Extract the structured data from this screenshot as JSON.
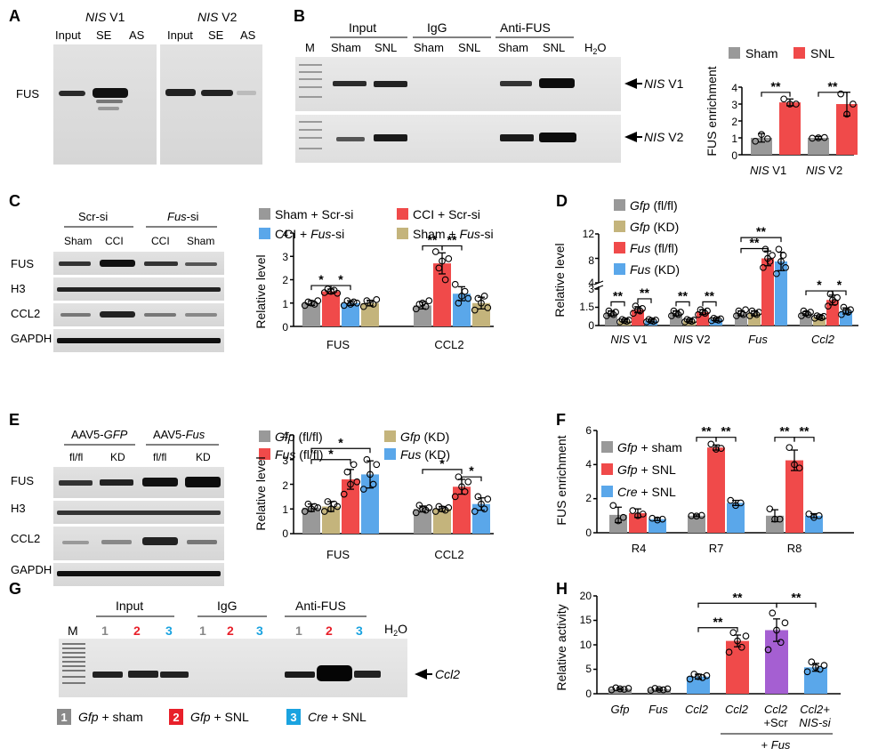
{
  "colors": {
    "gray": "#999999",
    "red": "#f04a4a",
    "blue": "#5aa7ea",
    "tan": "#c4b47c",
    "purple": "#a55fd2",
    "band_dark": "#111111"
  },
  "panel_labels": {
    "A": "A",
    "B": "B",
    "C": "C",
    "D": "D",
    "E": "E",
    "F": "F",
    "G": "G",
    "H": "H"
  },
  "panelA": {
    "group1_italic": "NIS",
    "group1_rest": " V1",
    "group2_italic": "NIS",
    "group2_rest": " V2",
    "lanes1": [
      "Input",
      "SE",
      "AS"
    ],
    "lanes2": [
      "Input",
      "SE",
      "AS"
    ],
    "row_label": "FUS"
  },
  "panelB": {
    "marker": "M",
    "groups": [
      "Input",
      "IgG",
      "Anti-FUS"
    ],
    "lanes": [
      "Sham",
      "SNL",
      "Sham",
      "SNL",
      "Sham",
      "SNL"
    ],
    "h2o_main": "H",
    "h2o_sub": "2",
    "h2o_end": "O",
    "arrow1_italic": "NIS",
    "arrow1_rest": " V1",
    "arrow2_italic": "NIS",
    "arrow2_rest": " V2",
    "chart": {
      "legend": [
        "Sham",
        "SNL"
      ],
      "ylabel": "FUS enrichment",
      "yticks": [
        "0",
        "1",
        "2",
        "3",
        "4"
      ],
      "categories_italic": [
        "NIS",
        "NIS"
      ],
      "categories_rest": [
        " V1",
        " V2"
      ],
      "sig": [
        "**",
        "**"
      ]
    }
  },
  "panelC": {
    "groups": [
      "Scr-si",
      "Fus-si"
    ],
    "lanes": [
      "Sham",
      "CCI",
      "CCI",
      "Sham"
    ],
    "rows": [
      "FUS",
      "H3",
      "CCL2",
      "GAPDH"
    ],
    "chart": {
      "legend": [
        "Sham + Scr-si",
        "CCI + Scr-si",
        "CCI + ",
        "Fus",
        "-si",
        "Sham + ",
        "Fus",
        "-si"
      ],
      "ylabel": "Relative level",
      "yticks": [
        "0",
        "1",
        "2",
        "3",
        "4"
      ],
      "categories": [
        "FUS",
        "CCL2"
      ],
      "sig": [
        "*",
        "*",
        "**",
        "**"
      ]
    }
  },
  "panelD": {
    "legend": [
      "Gfp",
      " (fl/fl)",
      "Gfp",
      " (KD)",
      "Fus",
      " (fl/fl)",
      "Fus",
      " (KD)"
    ],
    "ylabel": "Relative level",
    "yticks_low": [
      "0",
      "1.5",
      "3"
    ],
    "yticks_high": [
      "4",
      "8",
      "12"
    ],
    "categories_italic": [
      "NIS",
      "NIS",
      "Fus",
      "Ccl2"
    ],
    "categories_rest": [
      " V1",
      " V2",
      "",
      ""
    ],
    "sig": [
      "**",
      "**",
      "**",
      "**",
      "**",
      "**",
      "*",
      "*"
    ]
  },
  "panelE": {
    "groups_main": [
      "AAV5-",
      "AAV5-"
    ],
    "groups_italic": [
      "GFP",
      "Fus"
    ],
    "lanes": [
      "fl/fl",
      "KD",
      "fl/fl",
      "KD"
    ],
    "rows": [
      "FUS",
      "H3",
      "CCL2",
      "GAPDH"
    ],
    "chart": {
      "legend": [
        "Gfp",
        " (fl/fl)",
        "Gfp",
        " (KD)",
        "Fus",
        " (fl/fl)",
        "Fus",
        " (KD)"
      ],
      "ylabel": "Relative level",
      "yticks": [
        "0",
        "1",
        "2",
        "3",
        "4"
      ],
      "categories": [
        "FUS",
        "CCL2"
      ],
      "sig": [
        "*",
        "*",
        "*",
        "*"
      ]
    }
  },
  "panelF": {
    "legend": [
      "Gfp",
      " + sham",
      "Gfp",
      " + SNL",
      "Cre",
      " + SNL"
    ],
    "ylabel": "FUS enrichment",
    "yticks": [
      "0",
      "2",
      "4",
      "6"
    ],
    "categories": [
      "R4",
      "R7",
      "R8"
    ],
    "sig": [
      "**",
      "**",
      "**",
      "**"
    ]
  },
  "panelG": {
    "marker": "M",
    "groups": [
      "Input",
      "IgG",
      "Anti-FUS"
    ],
    "lane_nums": [
      "1",
      "2",
      "3",
      "1",
      "2",
      "3",
      "1",
      "2",
      "3"
    ],
    "h2o_main": "H",
    "h2o_sub": "2",
    "h2o_end": "O",
    "arrow_label": "Ccl2",
    "key_nums": [
      "1",
      "2",
      "3"
    ],
    "key_italic": [
      "Gfp",
      "Gfp",
      "Cre"
    ],
    "key_rest": [
      " + sham",
      " + SNL",
      " + SNL"
    ]
  },
  "panelH": {
    "ylabel": "Relative activity",
    "yticks": [
      "0",
      "5",
      "10",
      "15",
      "20"
    ],
    "categories": [
      "Gfp",
      "Fus",
      "Ccl2",
      "Ccl2",
      "Ccl2",
      "Ccl2+"
    ],
    "categories_line2": [
      "",
      "",
      "",
      "",
      "+Scr",
      "NIS-si"
    ],
    "bracket_label": "+ Fus",
    "bracket_plus": "+ ",
    "bracket_italic": "Fus",
    "sig": [
      "**",
      "**",
      "**"
    ]
  },
  "chart_data": [
    {
      "panel": "B",
      "type": "bar",
      "categories": [
        "NIS V1",
        "NIS V2"
      ],
      "series": [
        {
          "name": "Sham",
          "values": [
            1.0,
            1.0
          ],
          "error": [
            0.25,
            0.08
          ],
          "points": [
            [
              0.8,
              1.2,
              0.95
            ],
            [
              0.98,
              1.0,
              1.02
            ]
          ]
        },
        {
          "name": "SNL",
          "values": [
            3.1,
            3.0
          ],
          "error": [
            0.2,
            0.7
          ],
          "points": [
            [
              3.3,
              3.0,
              3.0
            ],
            [
              3.6,
              2.4,
              3.0
            ]
          ]
        }
      ],
      "ylabel": "FUS enrichment",
      "ylim": [
        0,
        4
      ]
    },
    {
      "panel": "C",
      "type": "bar",
      "categories": [
        "FUS",
        "CCL2"
      ],
      "series": [
        {
          "name": "Sham + Scr-si",
          "values": [
            1.0,
            0.9
          ],
          "error": [
            0.1,
            0.15
          ],
          "points": [
            [
              0.9,
              1.05,
              1.0,
              0.95,
              1.1
            ],
            [
              0.75,
              0.95,
              1.0,
              0.85,
              1.1
            ]
          ]
        },
        {
          "name": "CCI + Scr-si",
          "values": [
            1.5,
            2.7
          ],
          "error": [
            0.1,
            0.45
          ],
          "points": [
            [
              1.45,
              1.6,
              1.5,
              1.55,
              1.42
            ],
            [
              3.2,
              2.5,
              2.8,
              2.0,
              2.9
            ]
          ]
        },
        {
          "name": "CCI + Fus-si",
          "values": [
            1.0,
            1.4
          ],
          "error": [
            0.1,
            0.3
          ],
          "points": [
            [
              0.9,
              1.1,
              0.95,
              1.05,
              1.0
            ],
            [
              1.8,
              1.0,
              1.3,
              1.5,
              1.2
            ]
          ]
        },
        {
          "name": "Sham + Fus-si",
          "values": [
            1.0,
            1.0
          ],
          "error": [
            0.12,
            0.25
          ],
          "points": [
            [
              0.85,
              1.1,
              1.0,
              0.95,
              1.15
            ],
            [
              0.7,
              1.2,
              1.0,
              1.3,
              0.8
            ]
          ]
        }
      ],
      "ylabel": "Relative level",
      "ylim": [
        0,
        4
      ]
    },
    {
      "panel": "D",
      "type": "bar",
      "categories": [
        "NIS V1",
        "NIS V2",
        "Fus",
        "Ccl2"
      ],
      "series": [
        {
          "name": "Gfp (fl/fl)",
          "values": [
            1.0,
            1.0,
            1.0,
            1.0
          ],
          "error": [
            0.2,
            0.2,
            0.2,
            0.15
          ],
          "points": [
            [
              0.8,
              1.2,
              1.0,
              0.9,
              1.1
            ],
            [
              0.8,
              1.2,
              1.0,
              0.9,
              1.1
            ],
            [
              0.8,
              1.2,
              1.0,
              0.9,
              1.3
            ],
            [
              0.8,
              1.2,
              1.0,
              0.9,
              1.1
            ]
          ]
        },
        {
          "name": "Gfp (KD)",
          "values": [
            0.4,
            0.4,
            1.0,
            0.7
          ],
          "error": [
            0.1,
            0.1,
            0.2,
            0.1
          ],
          "points": [
            [
              0.3,
              0.5,
              0.4,
              0.35,
              0.45
            ],
            [
              0.3,
              0.5,
              0.4,
              0.35,
              0.45
            ],
            [
              0.8,
              1.2,
              1.0,
              0.9,
              1.1
            ],
            [
              0.6,
              0.8,
              0.7,
              0.65,
              0.75
            ]
          ]
        },
        {
          "name": "Fus (fl/fl)",
          "values": [
            1.3,
            1.1,
            8.0,
            2.1
          ],
          "error": [
            0.25,
            0.2,
            1.2,
            0.4
          ],
          "points": [
            [
              1.0,
              1.6,
              1.3,
              1.2,
              1.4
            ],
            [
              0.9,
              1.3,
              1.1,
              1.0,
              1.2
            ],
            [
              6.5,
              9.5,
              8.0,
              7.5,
              8.5
            ],
            [
              1.6,
              2.6,
              2.1,
              1.9,
              2.3
            ]
          ]
        },
        {
          "name": "Fus (KD)",
          "values": [
            0.4,
            0.5,
            7.5,
            1.2
          ],
          "error": [
            0.1,
            0.1,
            1.5,
            0.25
          ],
          "points": [
            [
              0.3,
              0.5,
              0.4,
              0.35,
              0.45
            ],
            [
              0.4,
              0.6,
              0.5,
              0.45,
              0.55
            ],
            [
              5.5,
              9.5,
              7.5,
              8.5,
              6.5
            ],
            [
              0.9,
              1.5,
              1.2,
              1.1,
              1.3
            ]
          ]
        }
      ],
      "ylabel": "Relative level",
      "ylim": [
        0,
        12
      ],
      "axis_break": [
        3,
        4
      ]
    },
    {
      "panel": "E",
      "type": "bar",
      "categories": [
        "FUS",
        "CCL2"
      ],
      "series": [
        {
          "name": "Gfp (fl/fl)",
          "values": [
            1.05,
            1.0
          ],
          "error": [
            0.15,
            0.12
          ],
          "points": [
            [
              0.9,
              1.2,
              1.0,
              1.1,
              1.05
            ],
            [
              0.85,
              1.15,
              1.0,
              0.95,
              1.05
            ]
          ]
        },
        {
          "name": "Gfp (KD)",
          "values": [
            1.1,
            1.0
          ],
          "error": [
            0.2,
            0.1
          ],
          "points": [
            [
              0.9,
              1.3,
              1.0,
              1.2,
              1.1
            ],
            [
              0.9,
              1.1,
              1.0,
              0.95,
              1.05
            ]
          ]
        },
        {
          "name": "Fus (fl/fl)",
          "values": [
            2.2,
            1.9
          ],
          "error": [
            0.4,
            0.3
          ],
          "points": [
            [
              1.6,
              2.5,
              2.0,
              2.8,
              2.1
            ],
            [
              1.5,
              2.3,
              1.9,
              1.7,
              2.1
            ]
          ]
        },
        {
          "name": "Fus (KD)",
          "values": [
            2.4,
            1.2
          ],
          "error": [
            0.55,
            0.25
          ],
          "points": [
            [
              1.8,
              3.0,
              2.4,
              2.0,
              2.8
            ],
            [
              0.9,
              1.5,
              1.2,
              1.0,
              1.4
            ]
          ]
        }
      ],
      "ylabel": "Relative level",
      "ylim": [
        0,
        4
      ]
    },
    {
      "panel": "F",
      "type": "bar",
      "categories": [
        "R4",
        "R7",
        "R8"
      ],
      "series": [
        {
          "name": "Gfp + sham",
          "values": [
            1.05,
            1.0,
            1.0
          ],
          "error": [
            0.45,
            0.05,
            0.35
          ],
          "points": [
            [
              1.6,
              0.7,
              0.9
            ],
            [
              1.0,
              0.98,
              1.02
            ],
            [
              1.4,
              0.8,
              0.8
            ]
          ]
        },
        {
          "name": "Gfp + SNL",
          "values": [
            1.15,
            5.0,
            4.25
          ],
          "error": [
            0.25,
            0.15,
            0.6
          ],
          "points": [
            [
              1.3,
              1.0,
              1.1
            ],
            [
              5.2,
              4.9,
              4.95
            ],
            [
              5.0,
              4.0,
              3.8
            ]
          ]
        },
        {
          "name": "Cre + SNL",
          "values": [
            0.8,
            1.75,
            1.0
          ],
          "error": [
            0.08,
            0.15,
            0.12
          ],
          "points": [
            [
              0.85,
              0.75,
              0.8
            ],
            [
              1.9,
              1.6,
              1.75
            ],
            [
              1.1,
              0.9,
              1.0
            ]
          ]
        }
      ],
      "ylabel": "FUS enrichment",
      "ylim": [
        0,
        6
      ]
    },
    {
      "panel": "H",
      "type": "bar",
      "categories": [
        "Gfp",
        "Fus",
        "Ccl2",
        "Ccl2 + Fus",
        "Ccl2 +Scr + Fus",
        "Ccl2+ NIS-si + Fus"
      ],
      "values": [
        1.0,
        0.9,
        3.5,
        10.8,
        13.0,
        5.4
      ],
      "error": [
        0.2,
        0.2,
        0.5,
        1.2,
        2.3,
        0.8
      ],
      "points": [
        [
          0.8,
          1.2,
          1.0,
          0.9,
          1.1
        ],
        [
          0.7,
          1.1,
          0.9,
          0.8,
          1.0
        ],
        [
          3.0,
          4.0,
          3.5,
          3.3,
          3.7
        ],
        [
          8.5,
          12.5,
          10.8,
          9.5,
          11.8
        ],
        [
          9.0,
          16.5,
          13.0,
          10.5,
          14.5
        ],
        [
          4.5,
          6.5,
          5.4,
          5.0,
          5.8
        ]
      ],
      "colors_by_bar": [
        "gray",
        "gray",
        "blue",
        "red",
        "purple",
        "blue"
      ],
      "ylabel": "Relative activity",
      "ylim": [
        0,
        20
      ]
    }
  ]
}
